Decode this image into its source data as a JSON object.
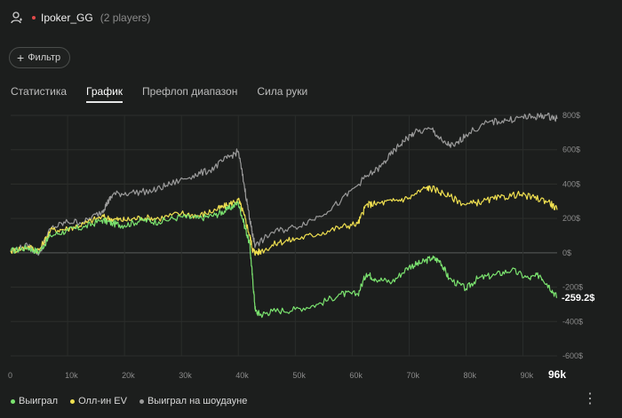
{
  "header": {
    "title": "Ipoker_GG",
    "players": "(2 players)"
  },
  "filter": {
    "label": "Фильтр"
  },
  "tabs": [
    {
      "label": "Статистика",
      "active": false
    },
    {
      "label": "График",
      "active": true
    },
    {
      "label": "Префлоп диапазон",
      "active": false
    },
    {
      "label": "Сила руки",
      "active": false
    }
  ],
  "chart_data": {
    "type": "line",
    "x_ticks": [
      "0",
      "10k",
      "20k",
      "30k",
      "40k",
      "50k",
      "60k",
      "70k",
      "80k",
      "90k",
      "96k"
    ],
    "y_ticks": [
      "800$",
      "600$",
      "400$",
      "200$",
      "0$",
      "-200$",
      "-400$",
      "-600$"
    ],
    "xlim": [
      0,
      96000
    ],
    "ylim": [
      -600,
      800
    ],
    "end_value_label": "-259.2$",
    "series": [
      {
        "name": "Выиграл",
        "color": "#7be36f",
        "x": [
          0,
          3000,
          5000,
          7000,
          10000,
          13000,
          16000,
          18000,
          20000,
          23000,
          26000,
          30000,
          33000,
          36000,
          38000,
          40000,
          41000,
          42000,
          42500,
          43000,
          44000,
          46000,
          50000,
          54000,
          58000,
          61000,
          62500,
          64000,
          67000,
          70000,
          72000,
          74000,
          75500,
          77000,
          80000,
          82000,
          85000,
          88000,
          91000,
          93000,
          94500,
          96000
        ],
        "y": [
          10,
          30,
          5,
          100,
          130,
          150,
          190,
          170,
          160,
          190,
          180,
          210,
          200,
          220,
          250,
          290,
          170,
          50,
          -150,
          -340,
          -360,
          -340,
          -330,
          -300,
          -240,
          -240,
          -120,
          -150,
          -170,
          -80,
          -60,
          -30,
          -50,
          -150,
          -210,
          -150,
          -130,
          -100,
          -150,
          -130,
          -190,
          -259.2
        ]
      },
      {
        "name": "Олл-ин EV",
        "color": "#f0e050",
        "x": [
          0,
          3000,
          5000,
          7000,
          10000,
          13000,
          16000,
          18000,
          20000,
          23000,
          26000,
          30000,
          33000,
          36000,
          38000,
          40000,
          41000,
          42000,
          42500,
          43000,
          44000,
          47000,
          50000,
          54000,
          58000,
          61000,
          62500,
          64000,
          67000,
          70000,
          73000,
          74500,
          77000,
          80000,
          83000,
          86000,
          89000,
          92000,
          94500,
          96000
        ],
        "y": [
          10,
          35,
          15,
          130,
          140,
          170,
          210,
          195,
          190,
          205,
          200,
          230,
          215,
          250,
          275,
          310,
          220,
          100,
          20,
          0,
          10,
          60,
          80,
          110,
          150,
          170,
          280,
          285,
          300,
          320,
          380,
          370,
          330,
          280,
          300,
          320,
          340,
          320,
          300,
          250
        ]
      },
      {
        "name": "Выиграл на шоудауне",
        "color": "#9a9a9a",
        "x": [
          0,
          3000,
          5000,
          7000,
          10000,
          13000,
          16000,
          17000,
          18000,
          21000,
          25000,
          28000,
          32000,
          35000,
          38000,
          40000,
          41000,
          42000,
          42500,
          43000,
          46000,
          50000,
          54000,
          58000,
          62000,
          65000,
          67000,
          69000,
          71000,
          74000,
          76000,
          78000,
          80000,
          84000,
          87000,
          90000,
          92000,
          94000,
          96000
        ],
        "y": [
          10,
          40,
          -5,
          140,
          180,
          180,
          240,
          290,
          340,
          350,
          360,
          400,
          450,
          480,
          550,
          590,
          400,
          200,
          100,
          40,
          120,
          150,
          210,
          300,
          430,
          500,
          580,
          650,
          700,
          720,
          640,
          620,
          690,
          760,
          770,
          790,
          790,
          800,
          780
        ]
      }
    ]
  },
  "legend": [
    {
      "label": "Выиграл",
      "color": "#7be36f"
    },
    {
      "label": "Олл-ин EV",
      "color": "#f0e050"
    },
    {
      "label": "Выиграл на шоудауне",
      "color": "#9a9a9a"
    }
  ],
  "icons": {
    "user": "user-icon",
    "plus": "plus-icon",
    "more": "more-vertical-icon"
  },
  "colors": {
    "background": "#1c1e1d",
    "status_dot": "#e24a4a"
  }
}
